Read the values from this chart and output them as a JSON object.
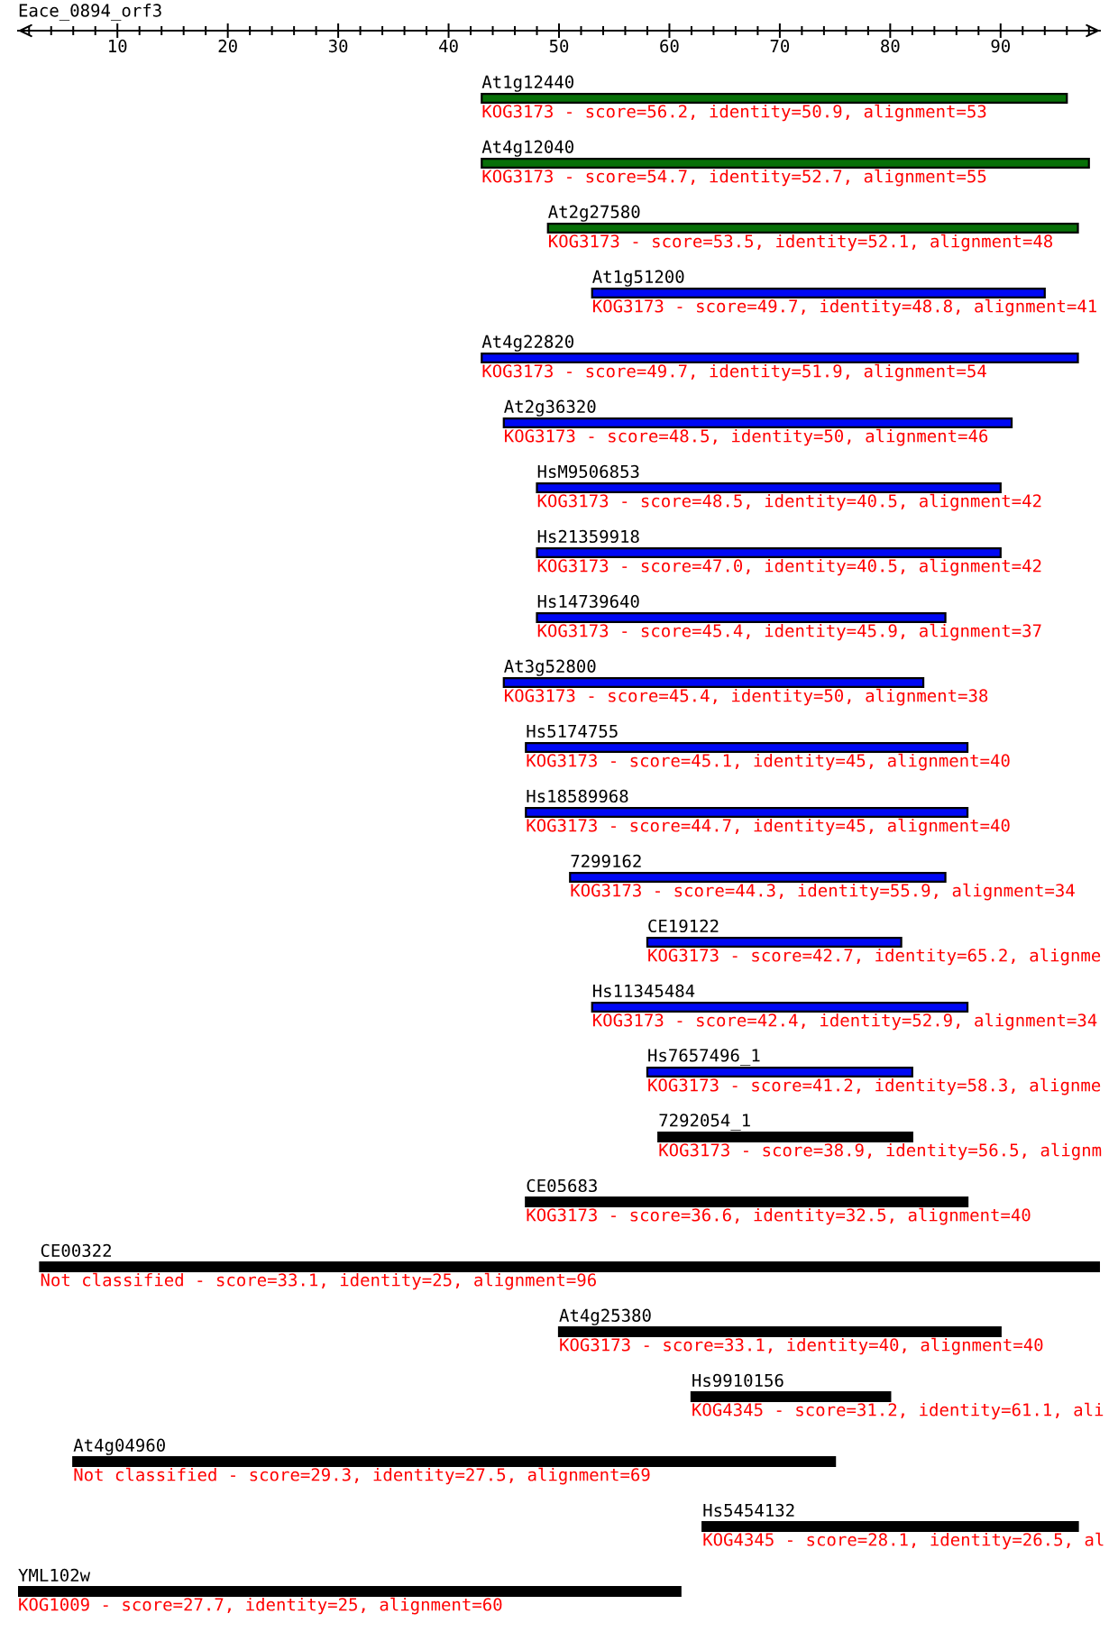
{
  "chart_data": {
    "type": "bar",
    "orientation": "horizontal",
    "title": "Eace_0894_orf3",
    "categories": [
      "At1g12440",
      "At4g12040",
      "At2g27580",
      "At1g51200",
      "At4g22820",
      "At2g36320",
      "HsM9506853",
      "Hs21359918",
      "Hs14739640",
      "At3g52800",
      "Hs5174755",
      "Hs18589968",
      "7299162",
      "CE19122",
      "Hs11345484",
      "Hs7657496_1",
      "7292054_1",
      "CE05683",
      "CE00322",
      "At4g25380",
      "Hs9910156",
      "At4g04960",
      "Hs5454132",
      "YML102w"
    ],
    "base": [
      43,
      43,
      49,
      53,
      43,
      45,
      48,
      48,
      48,
      45,
      47,
      47,
      51,
      58,
      53,
      58,
      59,
      47,
      3,
      50,
      62,
      6,
      63,
      1
    ],
    "values": [
      53,
      55,
      48,
      41,
      54,
      46,
      42,
      42,
      37,
      38,
      40,
      40,
      34,
      23,
      34,
      24,
      23,
      40,
      96,
      40,
      18,
      69,
      34,
      60
    ],
    "colors": [
      "#087008",
      "#087008",
      "#087008",
      "#0008f4",
      "#0008f4",
      "#0008f4",
      "#0008f4",
      "#0008f4",
      "#0008f4",
      "#0008f4",
      "#0008f4",
      "#0008f4",
      "#0008f4",
      "#0008f4",
      "#0008f4",
      "#0008f4",
      "#000000",
      "#000000",
      "#000000",
      "#000000",
      "#000000",
      "#000000",
      "#000000",
      "#000000"
    ],
    "xlim": [
      1,
      99
    ],
    "xticks": [
      {
        "value": 2,
        "label": null
      },
      {
        "value": 4,
        "label": null
      },
      {
        "value": 6,
        "label": null
      },
      {
        "value": 8,
        "label": null
      },
      10,
      {
        "value": 12,
        "label": null
      },
      {
        "value": 14,
        "label": null
      },
      {
        "value": 16,
        "label": null
      },
      {
        "value": 18,
        "label": null
      },
      20,
      {
        "value": 22,
        "label": null
      },
      {
        "value": 24,
        "label": null
      },
      {
        "value": 26,
        "label": null
      },
      {
        "value": 28,
        "label": null
      },
      30,
      {
        "value": 32,
        "label": null
      },
      {
        "value": 34,
        "label": null
      },
      {
        "value": 36,
        "label": null
      },
      {
        "value": 38,
        "label": null
      },
      40,
      {
        "value": 42,
        "label": null
      },
      {
        "value": 44,
        "label": null
      },
      {
        "value": 46,
        "label": null
      },
      {
        "value": 48,
        "label": null
      },
      50,
      {
        "value": 52,
        "label": null
      },
      {
        "value": 54,
        "label": null
      },
      {
        "value": 56,
        "label": null
      },
      {
        "value": 58,
        "label": null
      },
      60,
      {
        "value": 62,
        "label": null
      },
      {
        "value": 64,
        "label": null
      },
      {
        "value": 66,
        "label": null
      },
      {
        "value": 68,
        "label": null
      },
      70,
      {
        "value": 72,
        "label": null
      },
      {
        "value": 74,
        "label": null
      },
      {
        "value": 76,
        "label": null
      },
      {
        "value": 78,
        "label": null
      },
      80,
      {
        "value": 82,
        "label": null
      },
      {
        "value": 84,
        "label": null
      },
      {
        "value": 86,
        "label": null
      },
      {
        "value": 88,
        "label": null
      },
      90,
      {
        "value": 92,
        "label": null
      },
      {
        "value": 94,
        "label": null
      },
      {
        "value": 96,
        "label": null
      },
      {
        "value": 98,
        "label": null
      }
    ],
    "annotations": [
      "KOG3173 - score=56.2, identity=50.9, alignment=53",
      "KOG3173 - score=54.7, identity=52.7, alignment=55",
      "KOG3173 - score=53.5, identity=52.1, alignment=48",
      "KOG3173 - score=49.7, identity=48.8, alignment=41",
      "KOG3173 - score=49.7, identity=51.9, alignment=54",
      "KOG3173 - score=48.5, identity=50, alignment=46",
      "KOG3173 - score=48.5, identity=40.5, alignment=42",
      "KOG3173 - score=47.0, identity=40.5, alignment=42",
      "KOG3173 - score=45.4, identity=45.9, alignment=37",
      "KOG3173 - score=45.4, identity=50, alignment=38",
      "KOG3173 - score=45.1, identity=45, alignment=40",
      "KOG3173 - score=44.7, identity=45, alignment=40",
      "KOG3173 - score=44.3, identity=55.9, alignment=34",
      "KOG3173 - score=42.7, identity=65.2, alignme",
      "KOG3173 - score=42.4, identity=52.9, alignment=34",
      "KOG3173 - score=41.2, identity=58.3, alignme",
      "KOG3173 - score=38.9, identity=56.5, alignm",
      "KOG3173 - score=36.6, identity=32.5, alignment=40",
      "Not classified - score=33.1, identity=25, alignment=96",
      "KOG3173 - score=33.1, identity=40, alignment=40",
      "KOG4345 - score=31.2, identity=61.1, ali",
      "Not classified - score=29.3, identity=27.5, alignment=69",
      "KOG4345 - score=28.1, identity=26.5, al",
      "KOG1009 - score=27.7, identity=25, alignment=60"
    ]
  }
}
